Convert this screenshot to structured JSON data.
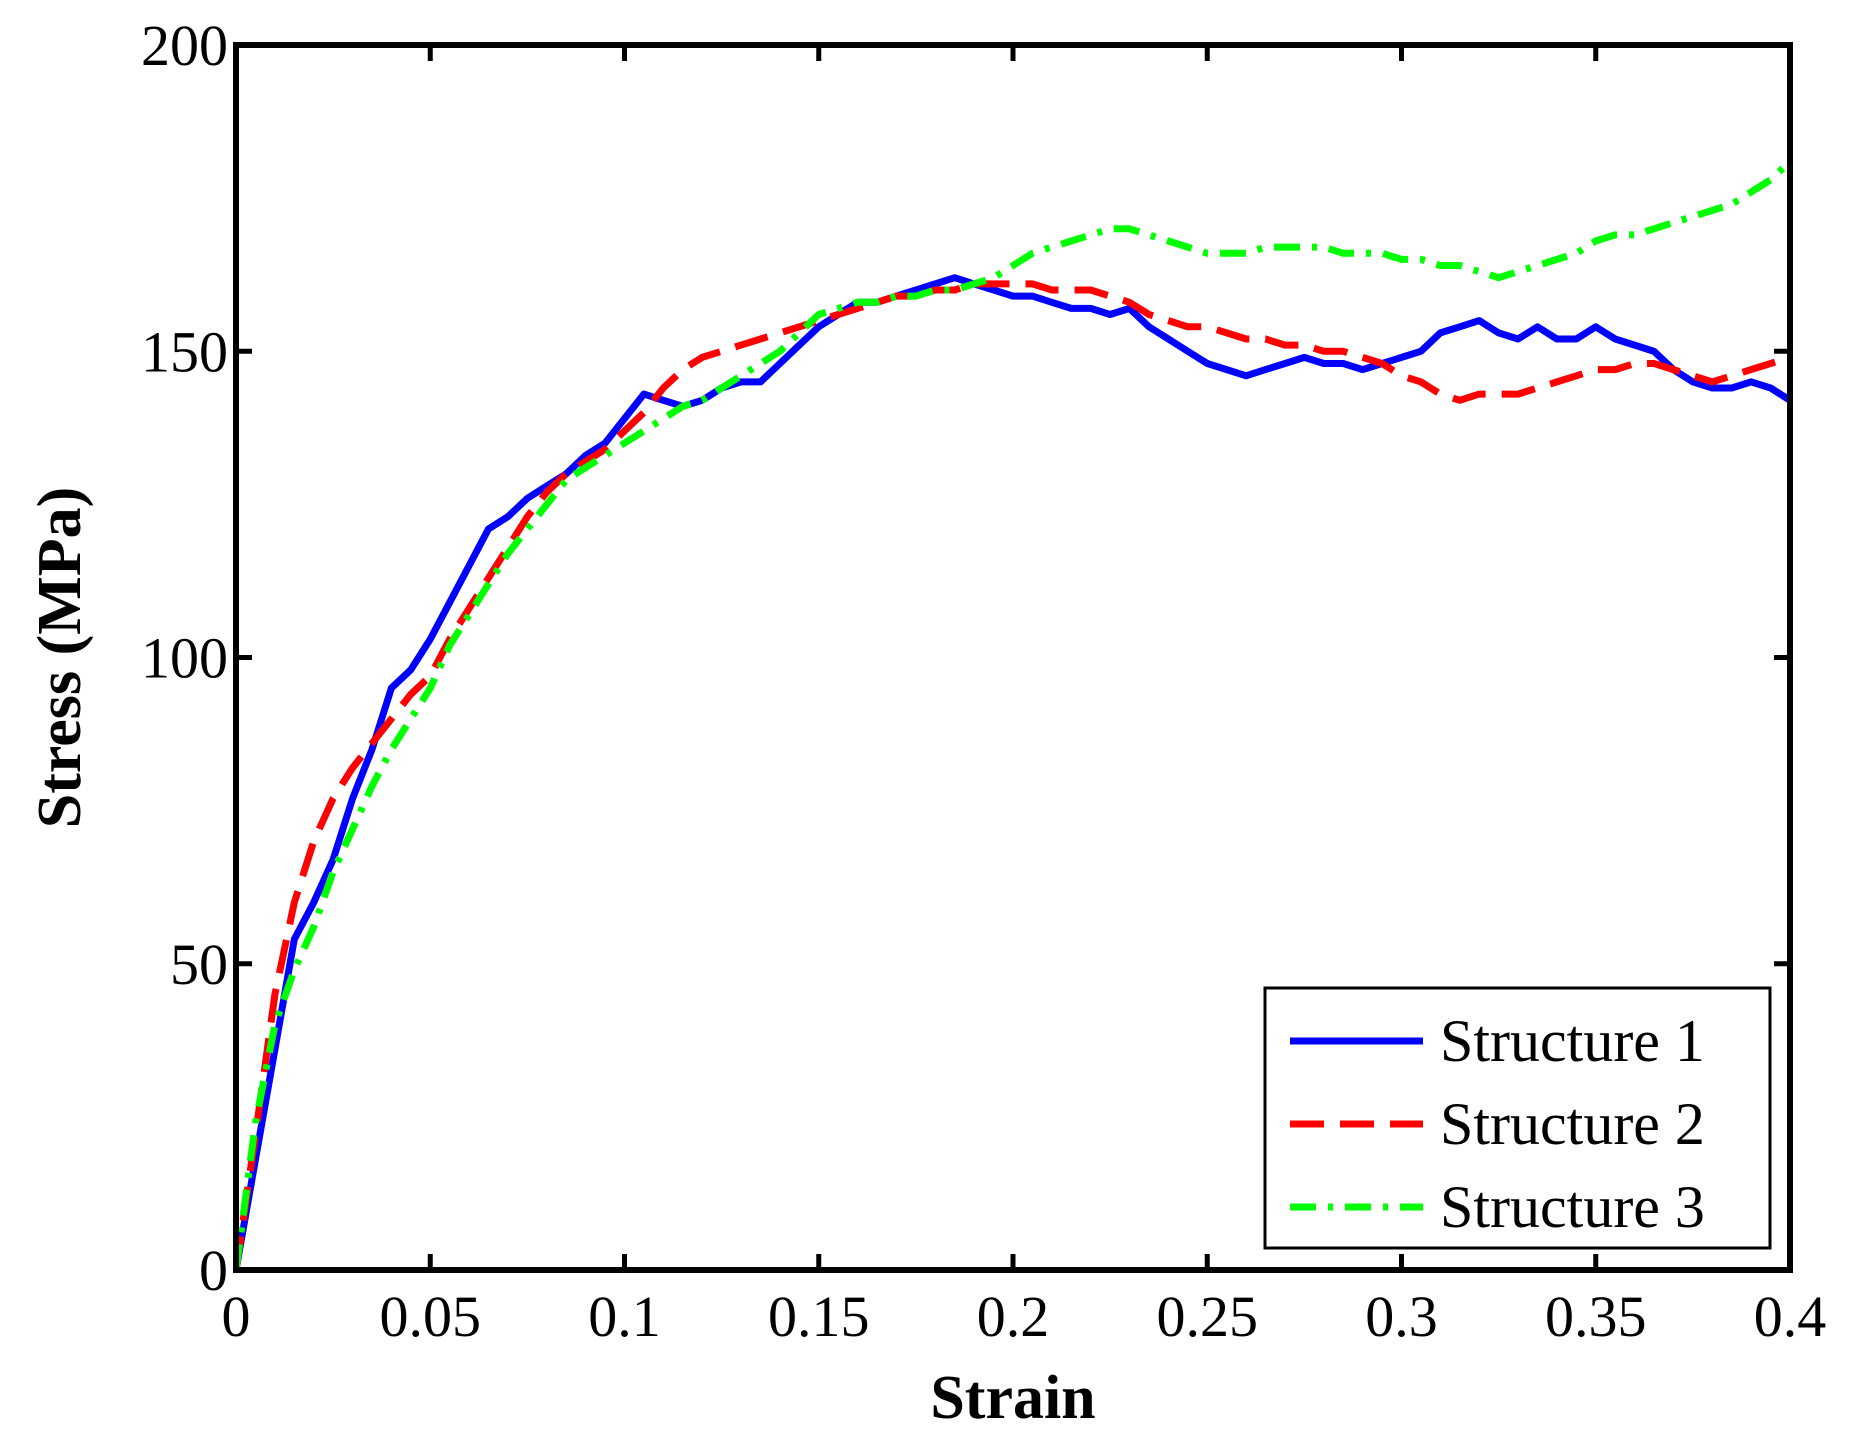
{
  "chart_data": {
    "type": "line",
    "title": "",
    "xlabel": "Strain",
    "ylabel": "Stress (MPa)",
    "xlim": [
      0,
      0.4
    ],
    "ylim": [
      0,
      200
    ],
    "xticks": [
      0,
      0.05,
      0.1,
      0.15,
      0.2,
      0.25,
      0.3,
      0.35,
      0.4
    ],
    "xtick_labels": [
      "0",
      "0.05",
      "0.1",
      "0.15",
      "0.2",
      "0.25",
      "0.3",
      "0.35",
      "0.4"
    ],
    "yticks": [
      0,
      50,
      100,
      150,
      200
    ],
    "ytick_labels": [
      "0",
      "50",
      "100",
      "150",
      "200"
    ],
    "grid": false,
    "legend_position": "bottom-right",
    "series": [
      {
        "name": "Structure 1",
        "color": "#0000ff",
        "style": "solid",
        "x": [
          0,
          0.005,
          0.01,
          0.015,
          0.02,
          0.025,
          0.03,
          0.035,
          0.04,
          0.045,
          0.05,
          0.055,
          0.06,
          0.065,
          0.07,
          0.075,
          0.08,
          0.085,
          0.09,
          0.095,
          0.1,
          0.105,
          0.11,
          0.115,
          0.12,
          0.125,
          0.13,
          0.135,
          0.14,
          0.145,
          0.15,
          0.155,
          0.16,
          0.165,
          0.17,
          0.175,
          0.18,
          0.185,
          0.19,
          0.195,
          0.2,
          0.205,
          0.21,
          0.215,
          0.22,
          0.225,
          0.23,
          0.235,
          0.24,
          0.245,
          0.25,
          0.255,
          0.26,
          0.265,
          0.27,
          0.275,
          0.28,
          0.285,
          0.29,
          0.295,
          0.3,
          0.305,
          0.31,
          0.315,
          0.32,
          0.325,
          0.33,
          0.335,
          0.34,
          0.345,
          0.35,
          0.355,
          0.36,
          0.365,
          0.37,
          0.375,
          0.38,
          0.385,
          0.39,
          0.395,
          0.4
        ],
        "values": [
          0,
          18,
          36,
          54,
          60,
          67,
          77,
          85,
          95,
          98,
          103,
          109,
          115,
          121,
          123,
          126,
          128,
          130,
          133,
          135,
          139,
          143,
          142,
          141,
          142,
          144,
          145,
          145,
          148,
          151,
          154,
          156,
          158,
          158,
          159,
          160,
          161,
          162,
          161,
          160,
          159,
          159,
          158,
          157,
          157,
          156,
          157,
          154,
          152,
          150,
          148,
          147,
          146,
          147,
          148,
          149,
          148,
          148,
          147,
          148,
          149,
          150,
          153,
          154,
          155,
          153,
          152,
          154,
          152,
          152,
          154,
          152,
          151,
          150,
          147,
          145,
          144,
          144,
          145,
          144,
          142
        ]
      },
      {
        "name": "Structure 2",
        "color": "#ff0000",
        "style": "dashed",
        "x": [
          0,
          0.005,
          0.01,
          0.015,
          0.02,
          0.025,
          0.03,
          0.035,
          0.04,
          0.045,
          0.05,
          0.055,
          0.06,
          0.065,
          0.07,
          0.075,
          0.08,
          0.085,
          0.09,
          0.095,
          0.1,
          0.105,
          0.11,
          0.115,
          0.12,
          0.125,
          0.13,
          0.135,
          0.14,
          0.145,
          0.15,
          0.155,
          0.16,
          0.165,
          0.17,
          0.175,
          0.18,
          0.185,
          0.19,
          0.195,
          0.2,
          0.205,
          0.21,
          0.215,
          0.22,
          0.225,
          0.23,
          0.235,
          0.24,
          0.245,
          0.25,
          0.255,
          0.26,
          0.265,
          0.27,
          0.275,
          0.28,
          0.285,
          0.29,
          0.295,
          0.3,
          0.305,
          0.31,
          0.315,
          0.32,
          0.325,
          0.33,
          0.335,
          0.34,
          0.345,
          0.35,
          0.355,
          0.36,
          0.365,
          0.37,
          0.375,
          0.38,
          0.385,
          0.39,
          0.395,
          0.4
        ],
        "values": [
          0,
          22,
          45,
          60,
          70,
          77,
          82,
          86,
          90,
          94,
          97,
          103,
          108,
          113,
          118,
          123,
          127,
          130,
          132,
          134,
          137,
          140,
          144,
          147,
          149,
          150,
          151,
          152,
          153,
          154,
          155,
          156,
          157,
          158,
          159,
          159,
          160,
          160,
          161,
          161,
          161,
          161,
          160,
          160,
          160,
          159,
          158,
          156,
          155,
          154,
          154,
          153,
          152,
          152,
          151,
          151,
          150,
          150,
          149,
          148,
          146,
          145,
          143,
          142,
          143,
          143,
          143,
          144,
          145,
          146,
          147,
          147,
          148,
          148,
          147,
          146,
          145,
          146,
          147,
          148,
          149
        ]
      },
      {
        "name": "Structure 3",
        "color": "#00ff00",
        "style": "dashdot",
        "x": [
          0,
          0.005,
          0.01,
          0.015,
          0.02,
          0.025,
          0.03,
          0.035,
          0.04,
          0.045,
          0.05,
          0.055,
          0.06,
          0.065,
          0.07,
          0.075,
          0.08,
          0.085,
          0.09,
          0.095,
          0.1,
          0.105,
          0.11,
          0.115,
          0.12,
          0.125,
          0.13,
          0.135,
          0.14,
          0.145,
          0.15,
          0.155,
          0.16,
          0.165,
          0.17,
          0.175,
          0.18,
          0.185,
          0.19,
          0.195,
          0.2,
          0.205,
          0.21,
          0.215,
          0.22,
          0.225,
          0.23,
          0.235,
          0.24,
          0.245,
          0.25,
          0.255,
          0.26,
          0.265,
          0.27,
          0.275,
          0.28,
          0.285,
          0.29,
          0.295,
          0.3,
          0.305,
          0.31,
          0.315,
          0.32,
          0.325,
          0.33,
          0.335,
          0.34,
          0.345,
          0.35,
          0.355,
          0.36,
          0.365,
          0.37,
          0.375,
          0.38,
          0.385,
          0.39,
          0.395,
          0.4
        ],
        "values": [
          0,
          24,
          40,
          49,
          56,
          65,
          72,
          79,
          85,
          90,
          95,
          102,
          107,
          112,
          117,
          121,
          125,
          129,
          131,
          133,
          135,
          137,
          139,
          141,
          142,
          144,
          146,
          148,
          150,
          153,
          156,
          157,
          158,
          158,
          159,
          159,
          160,
          160,
          161,
          162,
          164,
          166,
          167,
          168,
          169,
          170,
          170,
          169,
          168,
          167,
          166,
          166,
          166,
          167,
          167,
          167,
          167,
          166,
          166,
          166,
          165,
          165,
          164,
          164,
          163,
          162,
          163,
          164,
          165,
          166,
          168,
          169,
          169,
          170,
          171,
          172,
          173,
          174,
          176,
          178,
          181
        ]
      }
    ]
  }
}
